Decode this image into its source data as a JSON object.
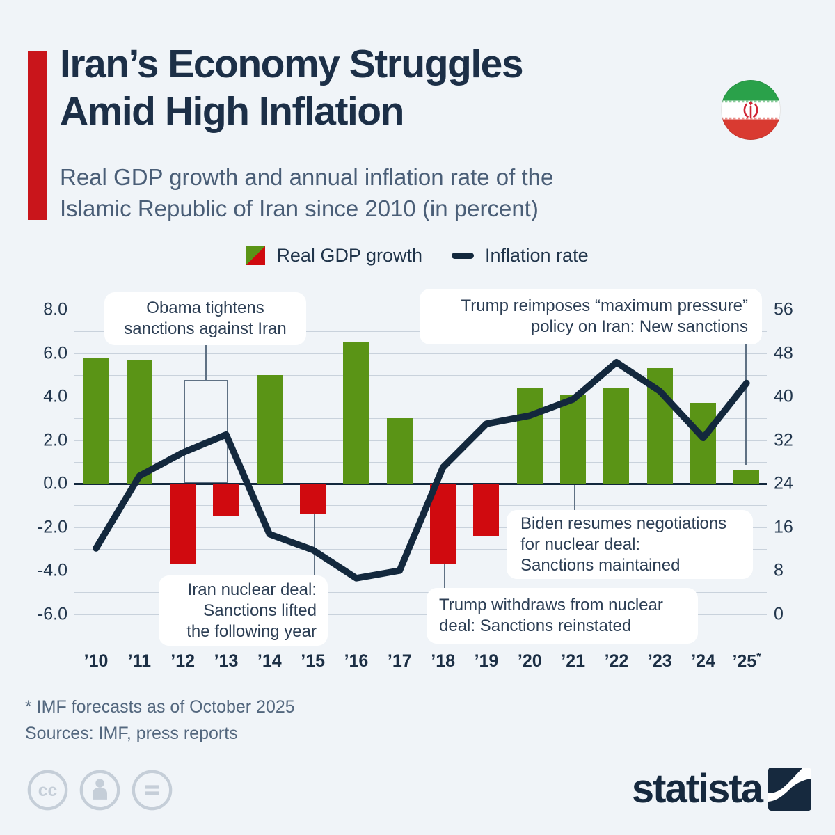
{
  "header": {
    "title_line1": "Iran’s Economy Struggles",
    "title_line2": "Amid High Inflation",
    "subtitle_line1": "Real GDP growth and annual inflation rate of the",
    "subtitle_line2": "Islamic Republic of Iran since 2010 (in percent)"
  },
  "legend": {
    "gdp_label": "Real GDP growth",
    "inflation_label": "Inflation rate"
  },
  "colors": {
    "background": "#f0f4f8",
    "accent_bar_red": "#c9151b",
    "bar_positive_green": "#5a9416",
    "bar_negative_red": "#d00a0f",
    "inflation_line_navy": "#13283d",
    "title_navy": "#1c2f47",
    "subtitle_gray_blue": "#4a5e77",
    "gridline_gray": "#c9d2dc",
    "footer_gray": "#53677e"
  },
  "chart_data": {
    "type": "bar",
    "subtype": "bar+line combo, dual axis",
    "categories": [
      "’10",
      "’11",
      "’12",
      "’13",
      "’14",
      "’15",
      "’16",
      "’17",
      "’18",
      "’19",
      "’20",
      "’21",
      "’22",
      "’23",
      "’24",
      "’25"
    ],
    "forecast_index": 15,
    "forecast_marker": "*",
    "series": [
      {
        "name": "Real GDP growth",
        "type": "bar",
        "axis": "left",
        "values": [
          5.8,
          5.7,
          -3.7,
          -1.5,
          5.0,
          -1.4,
          6.5,
          3.0,
          -3.7,
          -2.4,
          4.4,
          4.1,
          4.4,
          5.3,
          3.7,
          0.6
        ],
        "positive_color": "#5a9416",
        "negative_color": "#d00a0f"
      },
      {
        "name": "Inflation rate",
        "type": "line",
        "axis": "right",
        "values": [
          12.1,
          25.4,
          29.7,
          33.0,
          14.7,
          11.8,
          6.6,
          8.0,
          27.0,
          35.0,
          36.5,
          39.5,
          46.3,
          41.0,
          32.4,
          42.5
        ],
        "color": "#13283d"
      }
    ],
    "left_axis": {
      "ticks": [
        "8.0",
        "6.0",
        "4.0",
        "2.0",
        "0.0",
        "-2.0",
        "-4.0",
        "-6.0"
      ],
      "min": -6,
      "max": 8
    },
    "right_axis": {
      "ticks": [
        "56",
        "48",
        "40",
        "32",
        "24",
        "16",
        "8",
        "0"
      ],
      "min": 0,
      "max": 56
    },
    "grid": "horizontal gridlines every 1 unit (left scale), legend top center"
  },
  "annotations": {
    "obama": {
      "lines": [
        "Obama tightens",
        "sanctions against Iran"
      ]
    },
    "trump_2025": {
      "lines": [
        "Trump reimposes “maximum pressure”",
        "policy on Iran: New sanctions"
      ]
    },
    "biden": {
      "lines": [
        "Biden resumes negotiations",
        "for nuclear deal:",
        "Sanctions maintained"
      ]
    },
    "nuclear_deal": {
      "lines": [
        "Iran nuclear deal:",
        "Sanctions lifted",
        "the following year"
      ]
    },
    "trump_2018": {
      "lines": [
        "Trump withdraws from nuclear",
        "deal: Sanctions reinstated"
      ]
    }
  },
  "footnotes": {
    "forecast": "* IMF forecasts as of October 2025",
    "sources": "Sources: IMF, press reports"
  },
  "footer": {
    "brand": "statista",
    "license_icons": [
      "cc-icon",
      "attribution-person-icon",
      "equals-icon"
    ]
  }
}
